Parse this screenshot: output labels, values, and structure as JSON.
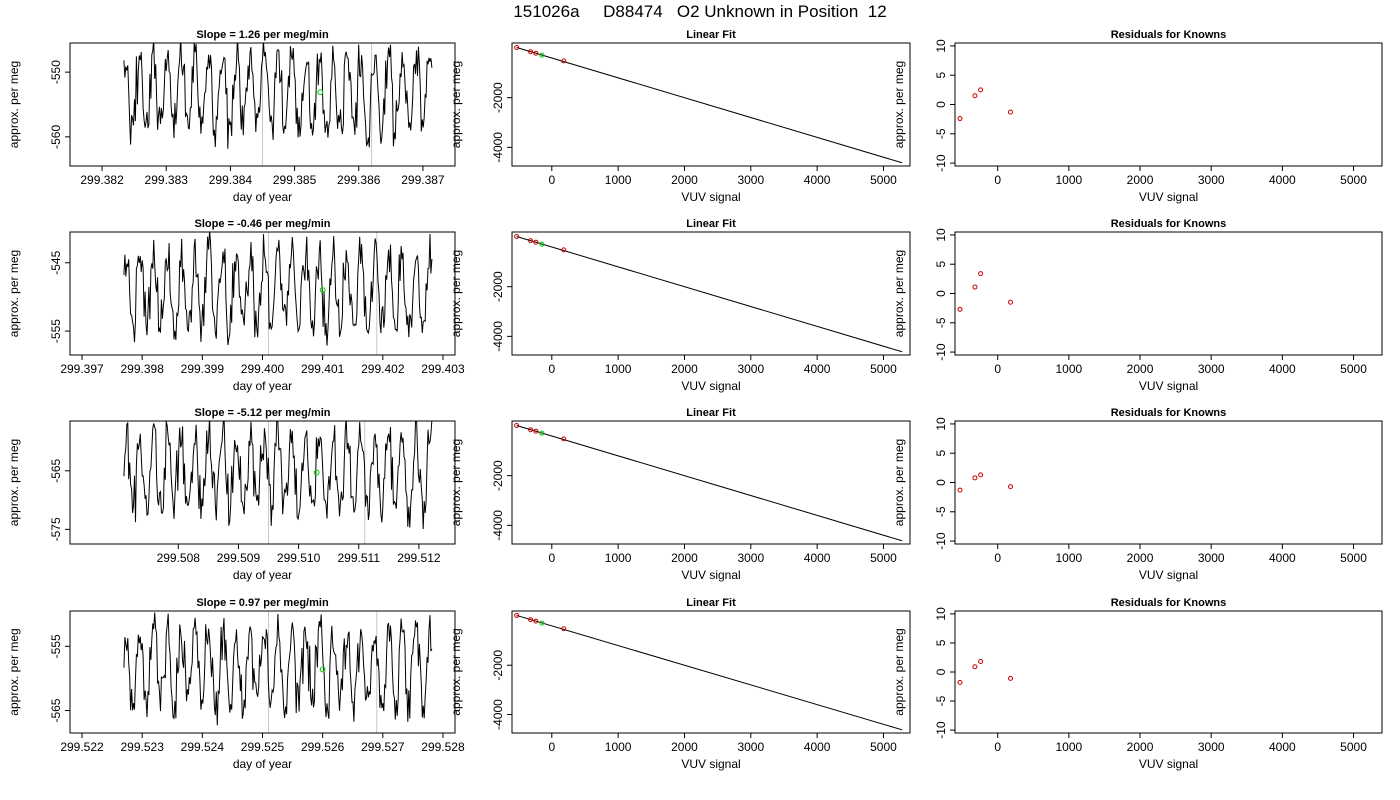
{
  "figure": {
    "title": "151026a     D88474   O2 Unknown in Position  12"
  },
  "chart_data": [
    {
      "type": "line",
      "panel": "timeseries-1",
      "title": "Slope =  1.26  per meg/min",
      "xlabel": "day of year",
      "ylabel": "approx. per meg",
      "xlim": [
        299.3815,
        299.3875
      ],
      "ylim": [
        -564.5,
        -545.5
      ],
      "xticks": [
        299.382,
        299.383,
        299.384,
        299.385,
        299.386,
        299.387
      ],
      "xtick_labels": [
        "299.382",
        "299.383",
        "299.384",
        "299.385",
        "299.386",
        "299.387"
      ],
      "yticks": [
        -550,
        -560
      ],
      "ytick_labels": [
        "-550",
        "-560"
      ],
      "vlines": [
        299.3845,
        299.3862
      ],
      "marker": {
        "x": 299.3854,
        "y": -553.1
      },
      "series": [
        {
          "x": [],
          "values": []
        }
      ]
    },
    {
      "type": "scatter",
      "panel": "linear-fit-1",
      "title": "Linear Fit",
      "xlabel": "VUV signal",
      "ylabel": "approx. per meg",
      "xlim": [
        -600,
        5400
      ],
      "ylim": [
        -4750,
        200
      ],
      "xticks": [
        0,
        1000,
        2000,
        3000,
        4000,
        5000
      ],
      "xtick_labels": [
        "0",
        "1000",
        "2000",
        "3000",
        "4000",
        "5000"
      ],
      "yticks": [
        -2000,
        -4000
      ],
      "ytick_labels": [
        "-2000",
        "-4000"
      ],
      "fit_line": {
        "x": [
          -530,
          5280
        ],
        "y": [
          20,
          -4620
        ]
      },
      "knowns": {
        "x": [
          -530,
          -320,
          -240,
          180
        ],
        "y": [
          20,
          -150,
          -210,
          -520
        ]
      },
      "unknown": {
        "x": -150,
        "y": -290
      }
    },
    {
      "type": "scatter",
      "panel": "residuals-1",
      "title": "Residuals for Knowns",
      "xlabel": "VUV signal",
      "ylabel": "approx. per meg",
      "xlim": [
        -600,
        5400
      ],
      "ylim": [
        -10.5,
        10.5
      ],
      "xticks": [
        0,
        1000,
        2000,
        3000,
        4000,
        5000
      ],
      "xtick_labels": [
        "0",
        "1000",
        "2000",
        "3000",
        "4000",
        "5000"
      ],
      "yticks": [
        10,
        5,
        0,
        -5,
        -10
      ],
      "ytick_labels": [
        "10",
        "5",
        "0",
        "-5",
        "-10"
      ],
      "x": [
        -530,
        -320,
        -240,
        180
      ],
      "y": [
        -2.4,
        1.5,
        2.5,
        -1.3
      ]
    },
    {
      "type": "line",
      "panel": "timeseries-2",
      "title": "Slope =  -0.46  per meg/min",
      "xlabel": "day of year",
      "ylabel": "approx. per meg",
      "xlim": [
        299.3968,
        299.4032
      ],
      "ylim": [
        -558.5,
        -540.5
      ],
      "xticks": [
        299.397,
        299.398,
        299.399,
        299.4,
        299.401,
        299.402,
        299.403
      ],
      "xtick_labels": [
        "299.397",
        "299.398",
        "299.399",
        "299.400",
        "299.401",
        "299.402",
        "299.403"
      ],
      "yticks": [
        -545,
        -555
      ],
      "ytick_labels": [
        "-545",
        "-555"
      ],
      "vlines": [
        299.4001,
        299.4019
      ],
      "marker": {
        "x": 299.401,
        "y": -549
      },
      "series": [
        {
          "x": [],
          "values": []
        }
      ]
    },
    {
      "type": "scatter",
      "panel": "linear-fit-2",
      "title": "Linear Fit",
      "xlabel": "VUV signal",
      "ylabel": "approx. per meg",
      "xlim": [
        -600,
        5400
      ],
      "ylim": [
        -4750,
        200
      ],
      "xticks": [
        0,
        1000,
        2000,
        3000,
        4000,
        5000
      ],
      "xtick_labels": [
        "0",
        "1000",
        "2000",
        "3000",
        "4000",
        "5000"
      ],
      "yticks": [
        -2000,
        -4000
      ],
      "ytick_labels": [
        "-2000",
        "-4000"
      ],
      "fit_line": {
        "x": [
          -530,
          5280
        ],
        "y": [
          20,
          -4620
        ]
      },
      "knowns": {
        "x": [
          -530,
          -320,
          -240,
          180
        ],
        "y": [
          20,
          -150,
          -210,
          -520
        ]
      },
      "unknown": {
        "x": -150,
        "y": -290
      }
    },
    {
      "type": "scatter",
      "panel": "residuals-2",
      "title": "Residuals for Knowns",
      "xlabel": "VUV signal",
      "ylabel": "approx. per meg",
      "xlim": [
        -600,
        5400
      ],
      "ylim": [
        -10.5,
        10.5
      ],
      "xticks": [
        0,
        1000,
        2000,
        3000,
        4000,
        5000
      ],
      "xtick_labels": [
        "0",
        "1000",
        "2000",
        "3000",
        "4000",
        "5000"
      ],
      "yticks": [
        10,
        5,
        0,
        -5,
        -10
      ],
      "ytick_labels": [
        "10",
        "5",
        "0",
        "-5",
        "-10"
      ],
      "x": [
        -530,
        -320,
        -240,
        180
      ],
      "y": [
        -2.7,
        1.1,
        3.4,
        -1.5
      ]
    },
    {
      "type": "line",
      "panel": "timeseries-3",
      "title": "Slope =  -5.12  per meg/min",
      "xlabel": "day of year",
      "ylabel": "approx. per meg",
      "xlim": [
        299.5062,
        299.5126
      ],
      "ylim": [
        -577.5,
        -556.5
      ],
      "xticks": [
        299.508,
        299.509,
        299.51,
        299.511,
        299.512
      ],
      "xtick_labels": [
        "299.508",
        "299.509",
        "299.510",
        "299.511",
        "299.512"
      ],
      "yticks": [
        -565,
        -575
      ],
      "ytick_labels": [
        "-565",
        "-575"
      ],
      "vlines": [
        299.5095,
        299.5111
      ],
      "marker": {
        "x": 299.5103,
        "y": -565.3
      },
      "series": [
        {
          "x": [],
          "values": []
        }
      ]
    },
    {
      "type": "scatter",
      "panel": "linear-fit-3",
      "title": "Linear Fit",
      "xlabel": "VUV signal",
      "ylabel": "approx. per meg",
      "xlim": [
        -600,
        5400
      ],
      "ylim": [
        -4750,
        200
      ],
      "xticks": [
        0,
        1000,
        2000,
        3000,
        4000,
        5000
      ],
      "xtick_labels": [
        "0",
        "1000",
        "2000",
        "3000",
        "4000",
        "5000"
      ],
      "yticks": [
        -2000,
        -4000
      ],
      "ytick_labels": [
        "-2000",
        "-4000"
      ],
      "fit_line": {
        "x": [
          -530,
          5280
        ],
        "y": [
          20,
          -4620
        ]
      },
      "knowns": {
        "x": [
          -530,
          -320,
          -240,
          180
        ],
        "y": [
          20,
          -150,
          -210,
          -520
        ]
      },
      "unknown": {
        "x": -150,
        "y": -290
      }
    },
    {
      "type": "scatter",
      "panel": "residuals-3",
      "title": "Residuals for Knowns",
      "xlabel": "VUV signal",
      "ylabel": "approx. per meg",
      "xlim": [
        -600,
        5400
      ],
      "ylim": [
        -10.5,
        10.5
      ],
      "xticks": [
        0,
        1000,
        2000,
        3000,
        4000,
        5000
      ],
      "xtick_labels": [
        "0",
        "1000",
        "2000",
        "3000",
        "4000",
        "5000"
      ],
      "yticks": [
        10,
        5,
        0,
        -5,
        -10
      ],
      "ytick_labels": [
        "10",
        "5",
        "0",
        "-5",
        "-10"
      ],
      "x": [
        -530,
        -320,
        -240,
        180
      ],
      "y": [
        -1.3,
        0.8,
        1.3,
        -0.7
      ]
    },
    {
      "type": "line",
      "panel": "timeseries-4",
      "title": "Slope =  0.97  per meg/min",
      "xlabel": "day of year",
      "ylabel": "approx. per meg",
      "xlim": [
        299.5218,
        299.5282
      ],
      "ylim": [
        -568.5,
        -549.5
      ],
      "xticks": [
        299.522,
        299.523,
        299.524,
        299.525,
        299.526,
        299.527,
        299.528
      ],
      "xtick_labels": [
        "299.522",
        "299.523",
        "299.524",
        "299.525",
        "299.526",
        "299.527",
        "299.528"
      ],
      "yticks": [
        -555,
        -565
      ],
      "ytick_labels": [
        "-555",
        "-565"
      ],
      "vlines": [
        299.5251,
        299.5269
      ],
      "marker": {
        "x": 299.526,
        "y": -558.6
      },
      "series": [
        {
          "x": [],
          "values": []
        }
      ]
    },
    {
      "type": "scatter",
      "panel": "linear-fit-4",
      "title": "Linear Fit",
      "xlabel": "VUV signal",
      "ylabel": "approx. per meg",
      "xlim": [
        -600,
        5400
      ],
      "ylim": [
        -4750,
        200
      ],
      "xticks": [
        0,
        1000,
        2000,
        3000,
        4000,
        5000
      ],
      "xtick_labels": [
        "0",
        "1000",
        "2000",
        "3000",
        "4000",
        "5000"
      ],
      "yticks": [
        -2000,
        -4000
      ],
      "ytick_labels": [
        "-2000",
        "-4000"
      ],
      "fit_line": {
        "x": [
          -530,
          5280
        ],
        "y": [
          20,
          -4620
        ]
      },
      "knowns": {
        "x": [
          -530,
          -320,
          -240,
          180
        ],
        "y": [
          20,
          -150,
          -210,
          -520
        ]
      },
      "unknown": {
        "x": -150,
        "y": -290
      }
    },
    {
      "type": "scatter",
      "panel": "residuals-4",
      "title": "Residuals for Knowns",
      "xlabel": "VUV signal",
      "ylabel": "approx. per meg",
      "xlim": [
        -600,
        5400
      ],
      "ylim": [
        -10.5,
        10.5
      ],
      "xticks": [
        0,
        1000,
        2000,
        3000,
        4000,
        5000
      ],
      "xtick_labels": [
        "0",
        "1000",
        "2000",
        "3000",
        "4000",
        "5000"
      ],
      "yticks": [
        10,
        5,
        0,
        -5,
        -10
      ],
      "ytick_labels": [
        "10",
        "5",
        "0",
        "-5",
        "-10"
      ],
      "x": [
        -530,
        -320,
        -240,
        180
      ],
      "y": [
        -1.8,
        0.9,
        1.8,
        -1.1
      ]
    }
  ],
  "colors": {
    "line": "#000000",
    "known": "#cc0000",
    "unknown": "#00cc00",
    "vline": "#c8c8c8",
    "frame": "#000000"
  }
}
